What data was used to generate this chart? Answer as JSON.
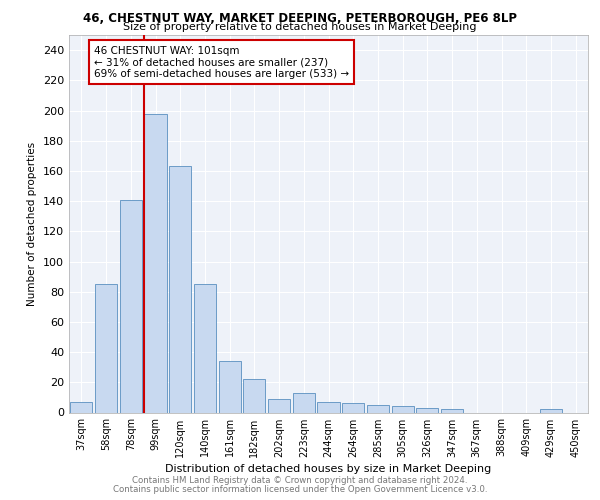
{
  "title": "46, CHESTNUT WAY, MARKET DEEPING, PETERBOROUGH, PE6 8LP",
  "subtitle": "Size of property relative to detached houses in Market Deeping",
  "xlabel": "Distribution of detached houses by size in Market Deeping",
  "ylabel": "Number of detached properties",
  "categories": [
    "37sqm",
    "58sqm",
    "78sqm",
    "99sqm",
    "120sqm",
    "140sqm",
    "161sqm",
    "182sqm",
    "202sqm",
    "223sqm",
    "244sqm",
    "264sqm",
    "285sqm",
    "305sqm",
    "326sqm",
    "347sqm",
    "367sqm",
    "388sqm",
    "409sqm",
    "429sqm",
    "450sqm"
  ],
  "values": [
    7,
    85,
    141,
    198,
    163,
    85,
    34,
    22,
    9,
    13,
    7,
    6,
    5,
    4,
    3,
    2,
    0,
    0,
    0,
    2,
    0
  ],
  "bar_color": "#c8d9f0",
  "bar_edge_color": "#5a8fc0",
  "vline_x_index": 3,
  "vline_color": "#cc0000",
  "annotation_title": "46 CHESTNUT WAY: 101sqm",
  "annotation_line1": "← 31% of detached houses are smaller (237)",
  "annotation_line2": "69% of semi-detached houses are larger (533) →",
  "annotation_box_color": "#cc0000",
  "ylim": [
    0,
    250
  ],
  "yticks": [
    0,
    20,
    40,
    60,
    80,
    100,
    120,
    140,
    160,
    180,
    200,
    220,
    240
  ],
  "background_color": "#eef2f9",
  "grid_color": "#ffffff",
  "footer_line1": "Contains HM Land Registry data © Crown copyright and database right 2024.",
  "footer_line2": "Contains public sector information licensed under the Open Government Licence v3.0."
}
